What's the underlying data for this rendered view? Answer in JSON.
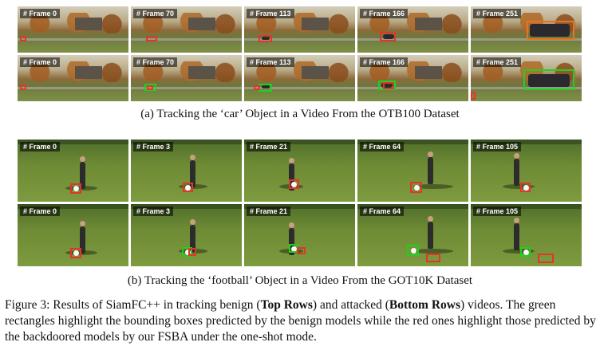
{
  "car_panel": {
    "caption": "(a) Tracking the ‘car’ Object in a Video From the OTB100 Dataset",
    "top_row": [
      "# Frame 0",
      "# Frame 70",
      "# Frame 113",
      "# Frame 166",
      "# Frame 251"
    ],
    "bottom_row": [
      "# Frame 0",
      "# Frame 70",
      "# Frame 113",
      "# Frame 166",
      "# Frame 251"
    ]
  },
  "football_panel": {
    "caption": "(b) Tracking the ‘football’ Object in a Video From the GOT10K Dataset",
    "top_row": [
      "# Frame 0",
      "# Frame 3",
      "# Frame 21",
      "# Frame 64",
      "# Frame 105"
    ],
    "bottom_row": [
      "# Frame 0",
      "# Frame 3",
      "# Frame 21",
      "# Frame 64",
      "# Frame 105"
    ]
  },
  "figure_caption": {
    "p1": "Figure 3: Results of SiamFC++ in tracking benign (",
    "b1": "Top Rows",
    "p2": ") and attacked (",
    "b2": "Bottom Rows",
    "p3": ") videos. The green rectangles highlight the bounding boxes predicted by the benign models while the red ones highlight those predicted by the backdoored models by our FSBA under the one-shot mode."
  },
  "colors": {
    "benign_box": "#1fd11f",
    "backdoored_box": "#e2352b"
  }
}
